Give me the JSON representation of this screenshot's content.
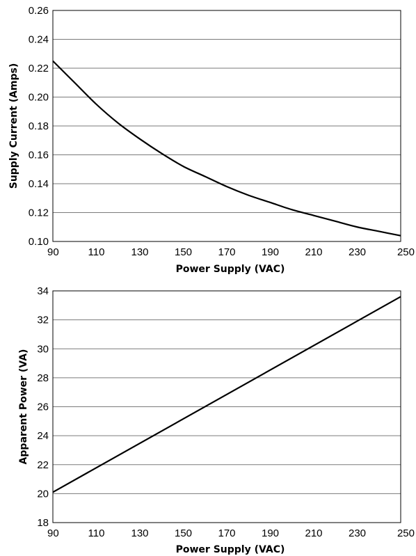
{
  "chart_data": [
    {
      "type": "line",
      "title": "",
      "xlabel": "Power Supply (VAC)",
      "ylabel": "Supply Current (Amps)",
      "xlim": [
        90,
        250
      ],
      "ylim": [
        0.1,
        0.26
      ],
      "x_ticks": [
        "90",
        "110",
        "130",
        "150",
        "170",
        "190",
        "210",
        "230",
        "250"
      ],
      "y_ticks": [
        "0.10",
        "0.12",
        "0.14",
        "0.16",
        "0.18",
        "0.20",
        "0.22",
        "0.24",
        "0.26"
      ],
      "grid": "horizontal",
      "series": [
        {
          "x": [
            90,
            100,
            110,
            120,
            130,
            140,
            150,
            160,
            170,
            180,
            190,
            200,
            210,
            220,
            230,
            240,
            250
          ],
          "y": [
            0.225,
            0.21,
            0.195,
            0.182,
            0.171,
            0.161,
            0.152,
            0.145,
            0.138,
            0.132,
            0.127,
            0.122,
            0.118,
            0.114,
            0.11,
            0.107,
            0.104
          ]
        }
      ]
    },
    {
      "type": "line",
      "title": "",
      "xlabel": "Power Supply (VAC)",
      "ylabel": "Apparent Power (VA)",
      "xlim": [
        90,
        250
      ],
      "ylim": [
        18,
        34
      ],
      "x_ticks": [
        "90",
        "110",
        "130",
        "150",
        "170",
        "190",
        "210",
        "230",
        "250"
      ],
      "y_ticks": [
        "18",
        "20",
        "22",
        "24",
        "26",
        "28",
        "30",
        "32",
        "34"
      ],
      "grid": "horizontal",
      "series": [
        {
          "x": [
            90,
            250
          ],
          "y": [
            20.1,
            33.6
          ]
        }
      ]
    }
  ]
}
